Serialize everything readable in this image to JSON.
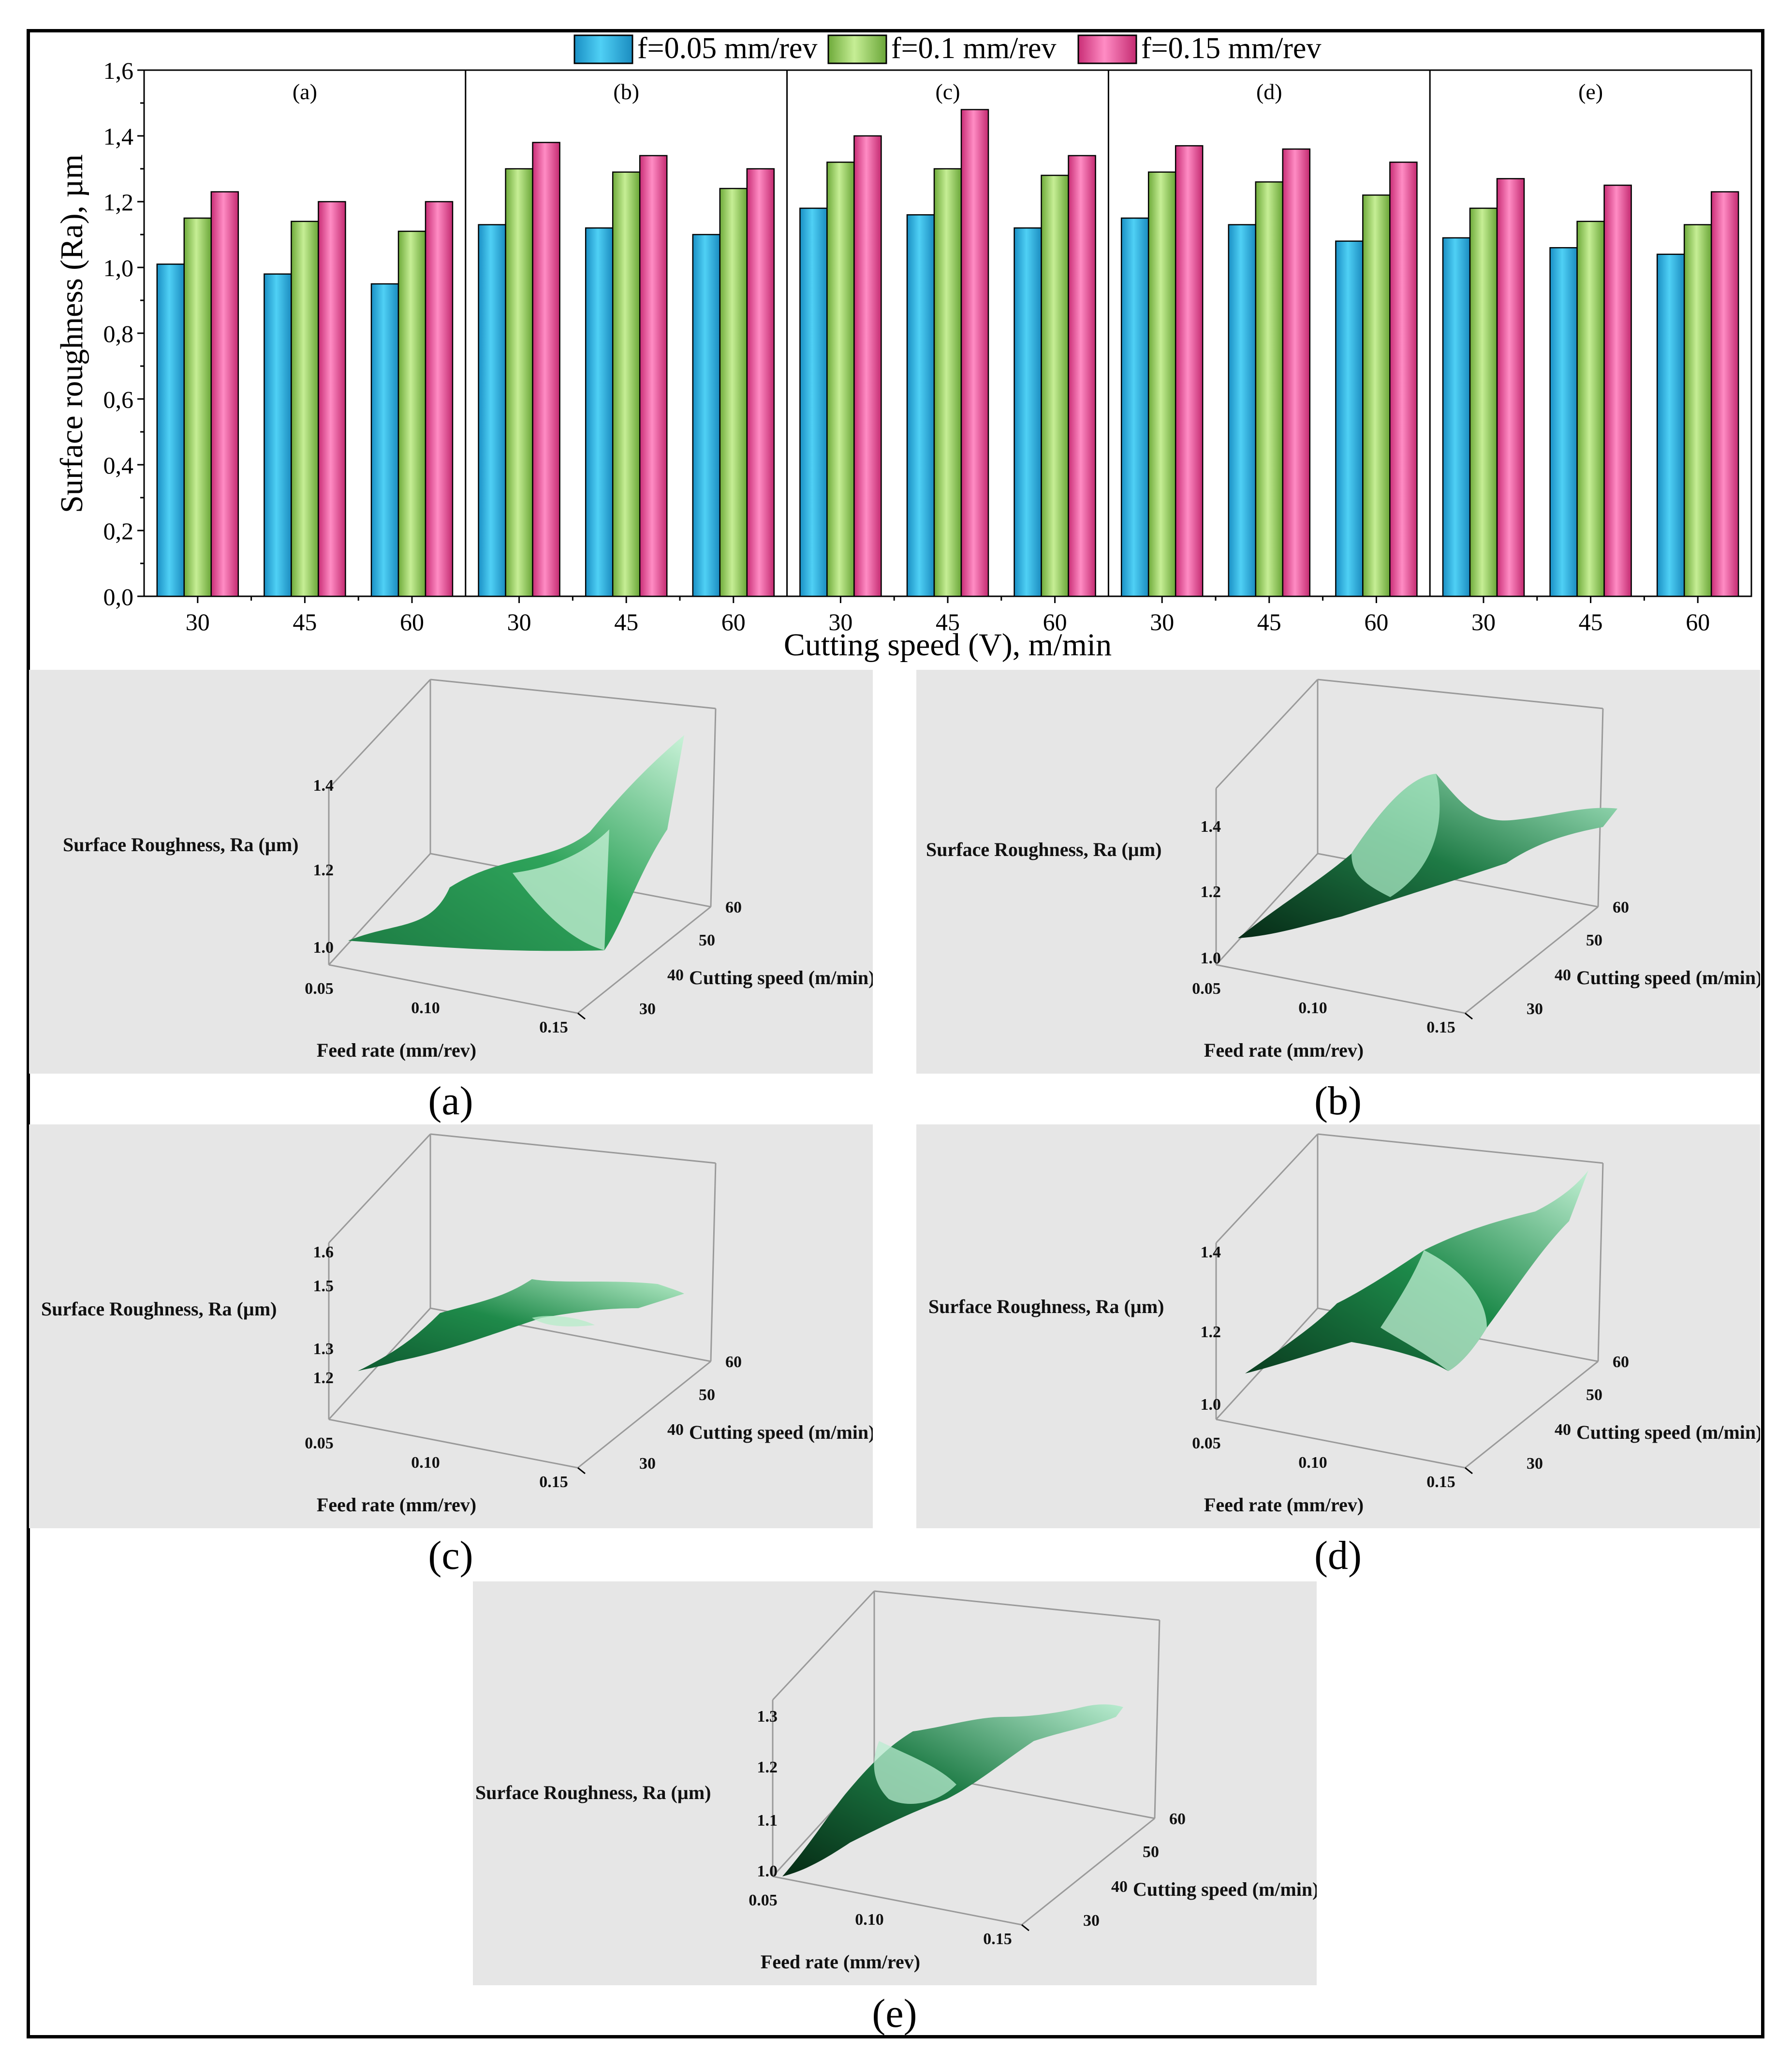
{
  "chart_data": [
    {
      "type": "bar",
      "ylabel": "Surface roughness (Ra), µm",
      "xlabel": "Cutting speed (V), m/min",
      "ylim": [
        0,
        1.6
      ],
      "yticks": [
        "0,0",
        "0,2",
        "0,4",
        "0,6",
        "0,8",
        "1,0",
        "1,2",
        "1,4",
        "1,6"
      ],
      "legend": [
        "f=0.05 mm/rev",
        "f=0.1 mm/rev",
        "f=0.15 mm/rev"
      ],
      "colors": [
        "#2fb2df",
        "#a3d36b",
        "#e8589d"
      ],
      "groups": [
        {
          "label": "(a)",
          "categories": [
            "30",
            "45",
            "60"
          ],
          "values": [
            [
              1.01,
              1.15,
              1.23
            ],
            [
              0.98,
              1.14,
              1.2
            ],
            [
              0.95,
              1.11,
              1.2
            ]
          ]
        },
        {
          "label": "(b)",
          "categories": [
            "30",
            "45",
            "60"
          ],
          "values": [
            [
              1.13,
              1.3,
              1.38
            ],
            [
              1.12,
              1.29,
              1.34
            ],
            [
              1.1,
              1.24,
              1.3
            ]
          ]
        },
        {
          "label": "(c)",
          "categories": [
            "30",
            "45",
            "60"
          ],
          "values": [
            [
              1.18,
              1.32,
              1.4
            ],
            [
              1.16,
              1.3,
              1.48
            ],
            [
              1.12,
              1.28,
              1.34
            ]
          ]
        },
        {
          "label": "(d)",
          "categories": [
            "30",
            "45",
            "60"
          ],
          "values": [
            [
              1.15,
              1.29,
              1.37
            ],
            [
              1.13,
              1.26,
              1.36
            ],
            [
              1.08,
              1.22,
              1.32
            ]
          ]
        },
        {
          "label": "(e)",
          "categories": [
            "30",
            "45",
            "60"
          ],
          "values": [
            [
              1.09,
              1.18,
              1.27
            ],
            [
              1.06,
              1.14,
              1.25
            ],
            [
              1.04,
              1.13,
              1.23
            ]
          ]
        }
      ]
    }
  ],
  "surface_plots": [
    {
      "caption": "(a)",
      "zlabel": "Surface Roughness, Ra (µm)",
      "zticks": [
        "1.4",
        "1.2",
        "1.0"
      ],
      "xlabel": "Feed rate (mm/rev)",
      "xticks": [
        "0.05",
        "0.10",
        "0.15"
      ],
      "ylabel": "Cutting speed (m/min)",
      "yticks": [
        "60",
        "50",
        "40",
        "30"
      ]
    },
    {
      "caption": "(b)",
      "zlabel": "Surface Roughness, Ra (µm)",
      "zticks": [
        "1.4",
        "1.2",
        "1.0"
      ],
      "xlabel": "Feed rate (mm/rev)",
      "xticks": [
        "0.05",
        "0.10",
        "0.15"
      ],
      "ylabel": "Cutting speed (m/min)",
      "yticks": [
        "60",
        "50",
        "40",
        "30"
      ]
    },
    {
      "caption": "(c)",
      "zlabel": "Surface Roughness, Ra (µm)",
      "zticks": [
        "1.6",
        "1.5",
        "1.3",
        "1.2"
      ],
      "xlabel": "Feed rate (mm/rev)",
      "xticks": [
        "0.05",
        "0.10",
        "0.15"
      ],
      "ylabel": "Cutting speed (m/min)",
      "yticks": [
        "60",
        "50",
        "40",
        "30"
      ]
    },
    {
      "caption": "(d)",
      "zlabel": "Surface Roughness, Ra (µm)",
      "zticks": [
        "1.4",
        "1.2",
        "1.0"
      ],
      "xlabel": "Feed rate (mm/rev)",
      "xticks": [
        "0.05",
        "0.10",
        "0.15"
      ],
      "ylabel": "Cutting speed (m/min)",
      "yticks": [
        "60",
        "50",
        "40",
        "30"
      ]
    },
    {
      "caption": "(e)",
      "zlabel": "Surface Roughness, Ra (µm)",
      "zticks": [
        "1.3",
        "1.2",
        "1.1",
        "1.0"
      ],
      "xlabel": "Feed rate (mm/rev)",
      "xticks": [
        "0.05",
        "0.10",
        "0.15"
      ],
      "ylabel": "Cutting speed (m/min)",
      "yticks": [
        "60",
        "50",
        "40",
        "30"
      ]
    }
  ]
}
